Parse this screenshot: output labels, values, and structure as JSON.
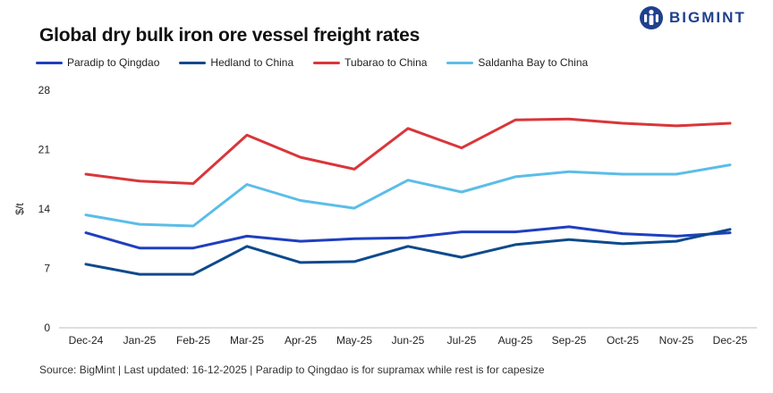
{
  "title": "Global dry bulk iron ore vessel freight rates",
  "brand": {
    "name": "BIGMINT",
    "icon": "bigmint-logo-icon",
    "color": "#1f3f8f"
  },
  "source_note": "Source: BigMint | Last updated: 16-12-2025 | Paradip to Qingdao is for supramax while rest is for capesize",
  "chart_data": {
    "type": "line",
    "ylabel": "$/t",
    "xlabel": "",
    "ylim": [
      0,
      28
    ],
    "yticks": [
      0,
      7,
      14,
      21,
      28
    ],
    "grid": false,
    "legend_position": "top-left",
    "categories": [
      "Dec-24",
      "Jan-25",
      "Feb-25",
      "Mar-25",
      "Apr-25",
      "May-25",
      "Jun-25",
      "Jul-25",
      "Aug-25",
      "Sep-25",
      "Oct-25",
      "Nov-25",
      "Dec-25"
    ],
    "series": [
      {
        "name": "Paradip to Qingdao",
        "color": "#1f3fbf",
        "values": [
          11.2,
          9.4,
          9.4,
          10.8,
          10.2,
          10.5,
          10.6,
          11.3,
          11.3,
          11.9,
          11.1,
          10.8,
          11.2
        ]
      },
      {
        "name": "Hedland to China",
        "color": "#0d4a8c",
        "values": [
          7.5,
          6.3,
          6.3,
          9.6,
          7.7,
          7.8,
          9.6,
          8.3,
          9.8,
          10.4,
          9.9,
          10.2,
          11.6
        ]
      },
      {
        "name": "Tubarao to China",
        "color": "#d9363a",
        "values": [
          18.1,
          17.3,
          17.0,
          22.7,
          20.1,
          18.7,
          23.5,
          21.2,
          24.5,
          24.6,
          24.1,
          23.8,
          24.1
        ]
      },
      {
        "name": "Saldanha Bay to China",
        "color": "#5bbde8",
        "values": [
          13.3,
          12.2,
          12.0,
          16.9,
          15.0,
          14.1,
          17.4,
          16.0,
          17.8,
          18.4,
          18.1,
          18.1,
          19.2
        ]
      }
    ]
  }
}
